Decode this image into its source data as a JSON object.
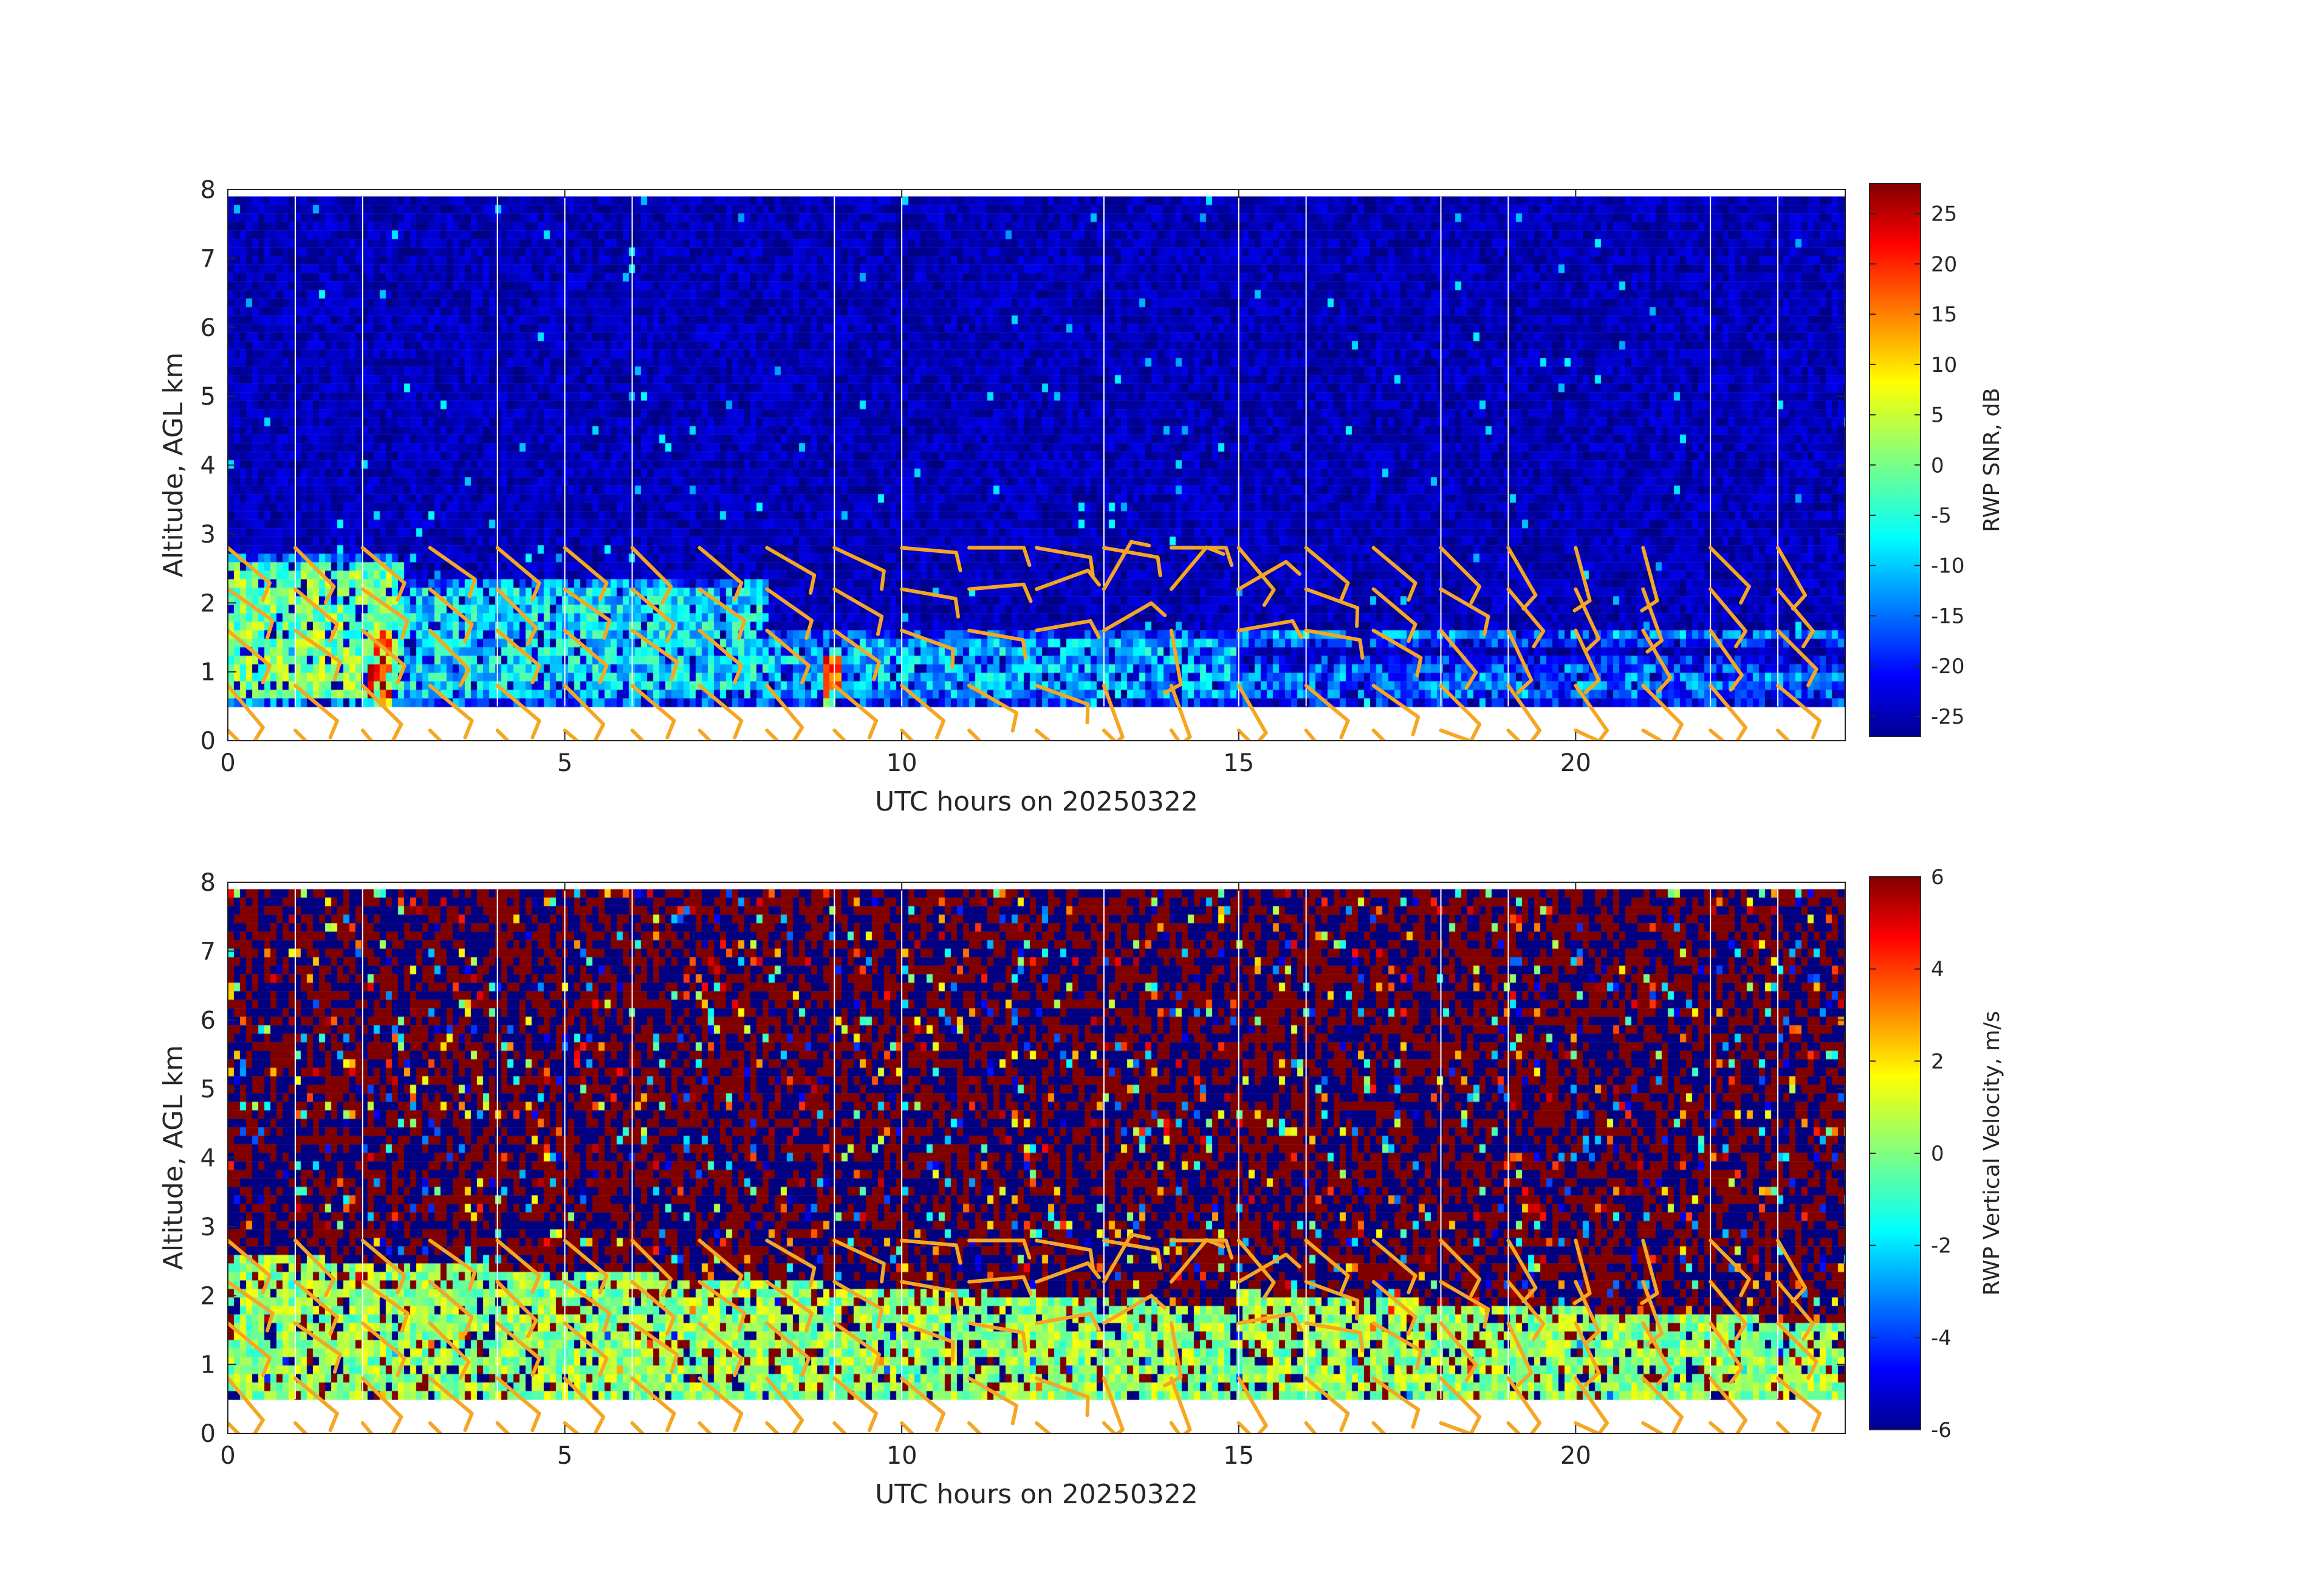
{
  "figure": {
    "x_label": "UTC hours on 20250322",
    "y_label": "Altitude, AGL km"
  },
  "chart_data": [
    {
      "type": "heatmap",
      "title": "",
      "xlabel": "UTC hours on 20250322",
      "ylabel": "Altitude, AGL km",
      "xlim": [
        0,
        24
      ],
      "ylim": [
        0,
        8
      ],
      "x_ticks": [
        0,
        5,
        10,
        15,
        20
      ],
      "y_ticks": [
        0,
        1,
        2,
        3,
        4,
        5,
        6,
        7,
        8
      ],
      "data_altitude_range_km": [
        0.5,
        7.9
      ],
      "colorbar": {
        "label": "RWP SNR, dB",
        "range": [
          -27,
          28
        ],
        "ticks": [
          -25,
          -20,
          -15,
          -10,
          -5,
          0,
          5,
          10,
          15,
          20,
          25
        ],
        "colormap": "jet"
      },
      "background_snr_db": -24,
      "features": [
        {
          "hour_start": 0,
          "hour_end": 2.6,
          "alt_min_km": 0.5,
          "alt_max_km": 2.7,
          "snr_db": 0
        },
        {
          "hour_start": 2.1,
          "hour_end": 2.4,
          "alt_min_km": 0.5,
          "alt_max_km": 1.6,
          "snr_db": 22
        },
        {
          "hour_start": 2.6,
          "hour_end": 8.0,
          "alt_min_km": 0.5,
          "alt_max_km": 2.4,
          "snr_db": -8
        },
        {
          "hour_start": 8.8,
          "hour_end": 9.1,
          "alt_min_km": 0.5,
          "alt_max_km": 1.4,
          "snr_db": 18
        },
        {
          "hour_start": 8.0,
          "hour_end": 15.0,
          "alt_min_km": 0.5,
          "alt_max_km": 1.6,
          "snr_db": -10
        },
        {
          "hour_start": 15.0,
          "hour_end": 24.0,
          "alt_min_km": 1.4,
          "alt_max_km": 1.65,
          "snr_db": -8
        },
        {
          "hour_start": 15.0,
          "hour_end": 24.0,
          "alt_min_km": 0.5,
          "alt_max_km": 1.2,
          "snr_db": -14
        }
      ]
    },
    {
      "type": "heatmap",
      "title": "",
      "xlabel": "UTC hours on 20250322",
      "ylabel": "Altitude, AGL km",
      "xlim": [
        0,
        24
      ],
      "ylim": [
        0,
        8
      ],
      "x_ticks": [
        0,
        5,
        10,
        15,
        20
      ],
      "y_ticks": [
        0,
        1,
        2,
        3,
        4,
        5,
        6,
        7,
        8
      ],
      "data_altitude_range_km": [
        0.5,
        7.9
      ],
      "colorbar": {
        "label": "RWP Vertical Velocity, m/s",
        "range": [
          -6,
          6
        ],
        "ticks": [
          -6,
          -4,
          -2,
          0,
          2,
          4,
          6
        ],
        "colormap": "jet"
      },
      "background": "noise, mostly saturated at ±6 m/s above the boundary layer",
      "boundary_layer_velocity_ms": [
        -1,
        1.5
      ]
    }
  ],
  "wind_barbs": {
    "color": "#f5a623",
    "levels_km": [
      0.15,
      0.8,
      1.6,
      2.2,
      2.8
    ],
    "hours": [
      0,
      1,
      2,
      3,
      4,
      5,
      6,
      7,
      8,
      9,
      10,
      11,
      12,
      13,
      14,
      15,
      16,
      17,
      18,
      19,
      20,
      21,
      22,
      23
    ],
    "direction_deg": [
      [
        225,
        220,
        230,
        235,
        230
      ],
      [
        225,
        230,
        235,
        230,
        225
      ],
      [
        220,
        225,
        230,
        235,
        230
      ],
      [
        225,
        230,
        225,
        230,
        235
      ],
      [
        225,
        230,
        230,
        225,
        230
      ],
      [
        230,
        225,
        230,
        235,
        230
      ],
      [
        225,
        230,
        235,
        230,
        225
      ],
      [
        225,
        230,
        230,
        235,
        230
      ],
      [
        225,
        220,
        230,
        235,
        240
      ],
      [
        225,
        230,
        235,
        240,
        245
      ],
      [
        225,
        230,
        250,
        260,
        265
      ],
      [
        225,
        240,
        260,
        275,
        270
      ],
      [
        230,
        250,
        280,
        290,
        260
      ],
      [
        225,
        200,
        300,
        330,
        260
      ],
      [
        215,
        200,
        190,
        320,
        270
      ],
      [
        225,
        210,
        280,
        300,
        220
      ],
      [
        220,
        230,
        260,
        250,
        230
      ],
      [
        225,
        235,
        240,
        230,
        230
      ],
      [
        250,
        225,
        220,
        240,
        225
      ],
      [
        225,
        215,
        205,
        220,
        210
      ],
      [
        245,
        215,
        205,
        205,
        195
      ],
      [
        240,
        225,
        210,
        200,
        195
      ],
      [
        230,
        220,
        215,
        220,
        225
      ],
      [
        225,
        230,
        225,
        220,
        210
      ]
    ]
  },
  "gap_lines_hours": [
    1,
    2,
    4,
    5,
    6,
    9,
    10,
    13,
    15,
    16,
    18,
    19,
    22,
    23
  ]
}
